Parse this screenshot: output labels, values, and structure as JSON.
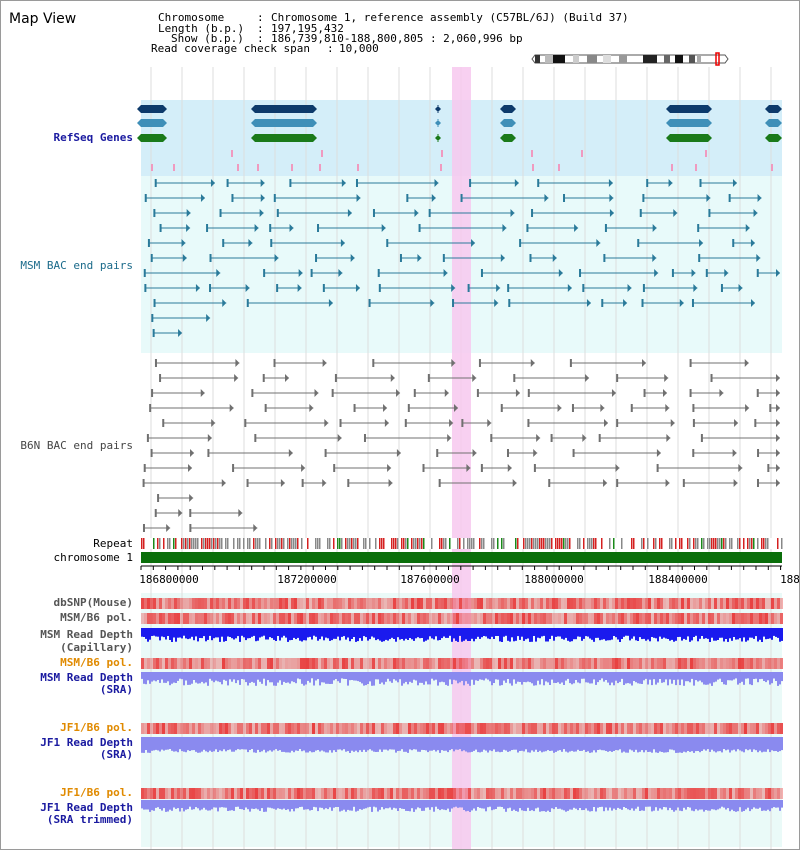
{
  "title": "Map View",
  "info": {
    "chromosome_key": "Chromosome",
    "chromosome_val": "Chromosome 1, reference assembly (C57BL/6J) (Build 37)",
    "length_key": "Length (b.p.)",
    "length_val": "197,195,432",
    "show_key": "Show (b.p.)",
    "show_val": "186,739,810-188,800,805 : 2,060,996 bp",
    "coverage_key": "Read coverage check span",
    "coverage_val": "10,000"
  },
  "tracks": {
    "refseq": "RefSeq Genes",
    "msm_bac": "MSM BAC end pairs",
    "b6n_bac": "B6N BAC end pairs",
    "repeat": "Repeat",
    "chromosome": "chromosome 1",
    "dbsnp": "dbSNP(Mouse)",
    "msm_b6_pol_1": "MSM/B6 pol.",
    "msm_read_depth_cap_1": "MSM Read Depth",
    "msm_read_depth_cap_2": "(Capillary)",
    "msm_b6_pol_2": "MSM/B6 pol.",
    "msm_read_depth_sra_1": "MSM Read Depth",
    "msm_read_depth_sra_2": "(SRA)",
    "jf1_b6_pol_1": "JF1/B6 pol.",
    "jf1_read_depth_1": "JF1 Read Depth",
    "jf1_read_depth_2": "(SRA)",
    "jf1_b6_pol_2": "JF1/B6 pol.",
    "jf1_read_depth_trim_1": "JF1 Read Depth",
    "jf1_read_depth_trim_2": "(SRA trimmed)"
  },
  "axis_ticks": [
    "186800000",
    "187200000",
    "187600000",
    "188000000",
    "188400000",
    "188"
  ],
  "colors": {
    "refseq_bg": "#d4eef9",
    "msm_bg": "#e8fafa",
    "b6n_bg": "#ffffff",
    "highlight": "#f7c8ee",
    "gene_navy": "#0d3a6b",
    "gene_teal": "#3f8fb8",
    "gene_green": "#1a7a1a",
    "msm_line": "#2a7a9a",
    "b6n_line": "#707070",
    "chromosome": "#0a6e0a",
    "snp_red": "#e84040",
    "depth_blue": "#1a1aee",
    "depth_lilac": "#8a8aef",
    "label_blue": "#1a1aa0",
    "label_orange": "#e08a00",
    "label_gray": "#444444",
    "label_teal": "#1a6a8a"
  }
}
